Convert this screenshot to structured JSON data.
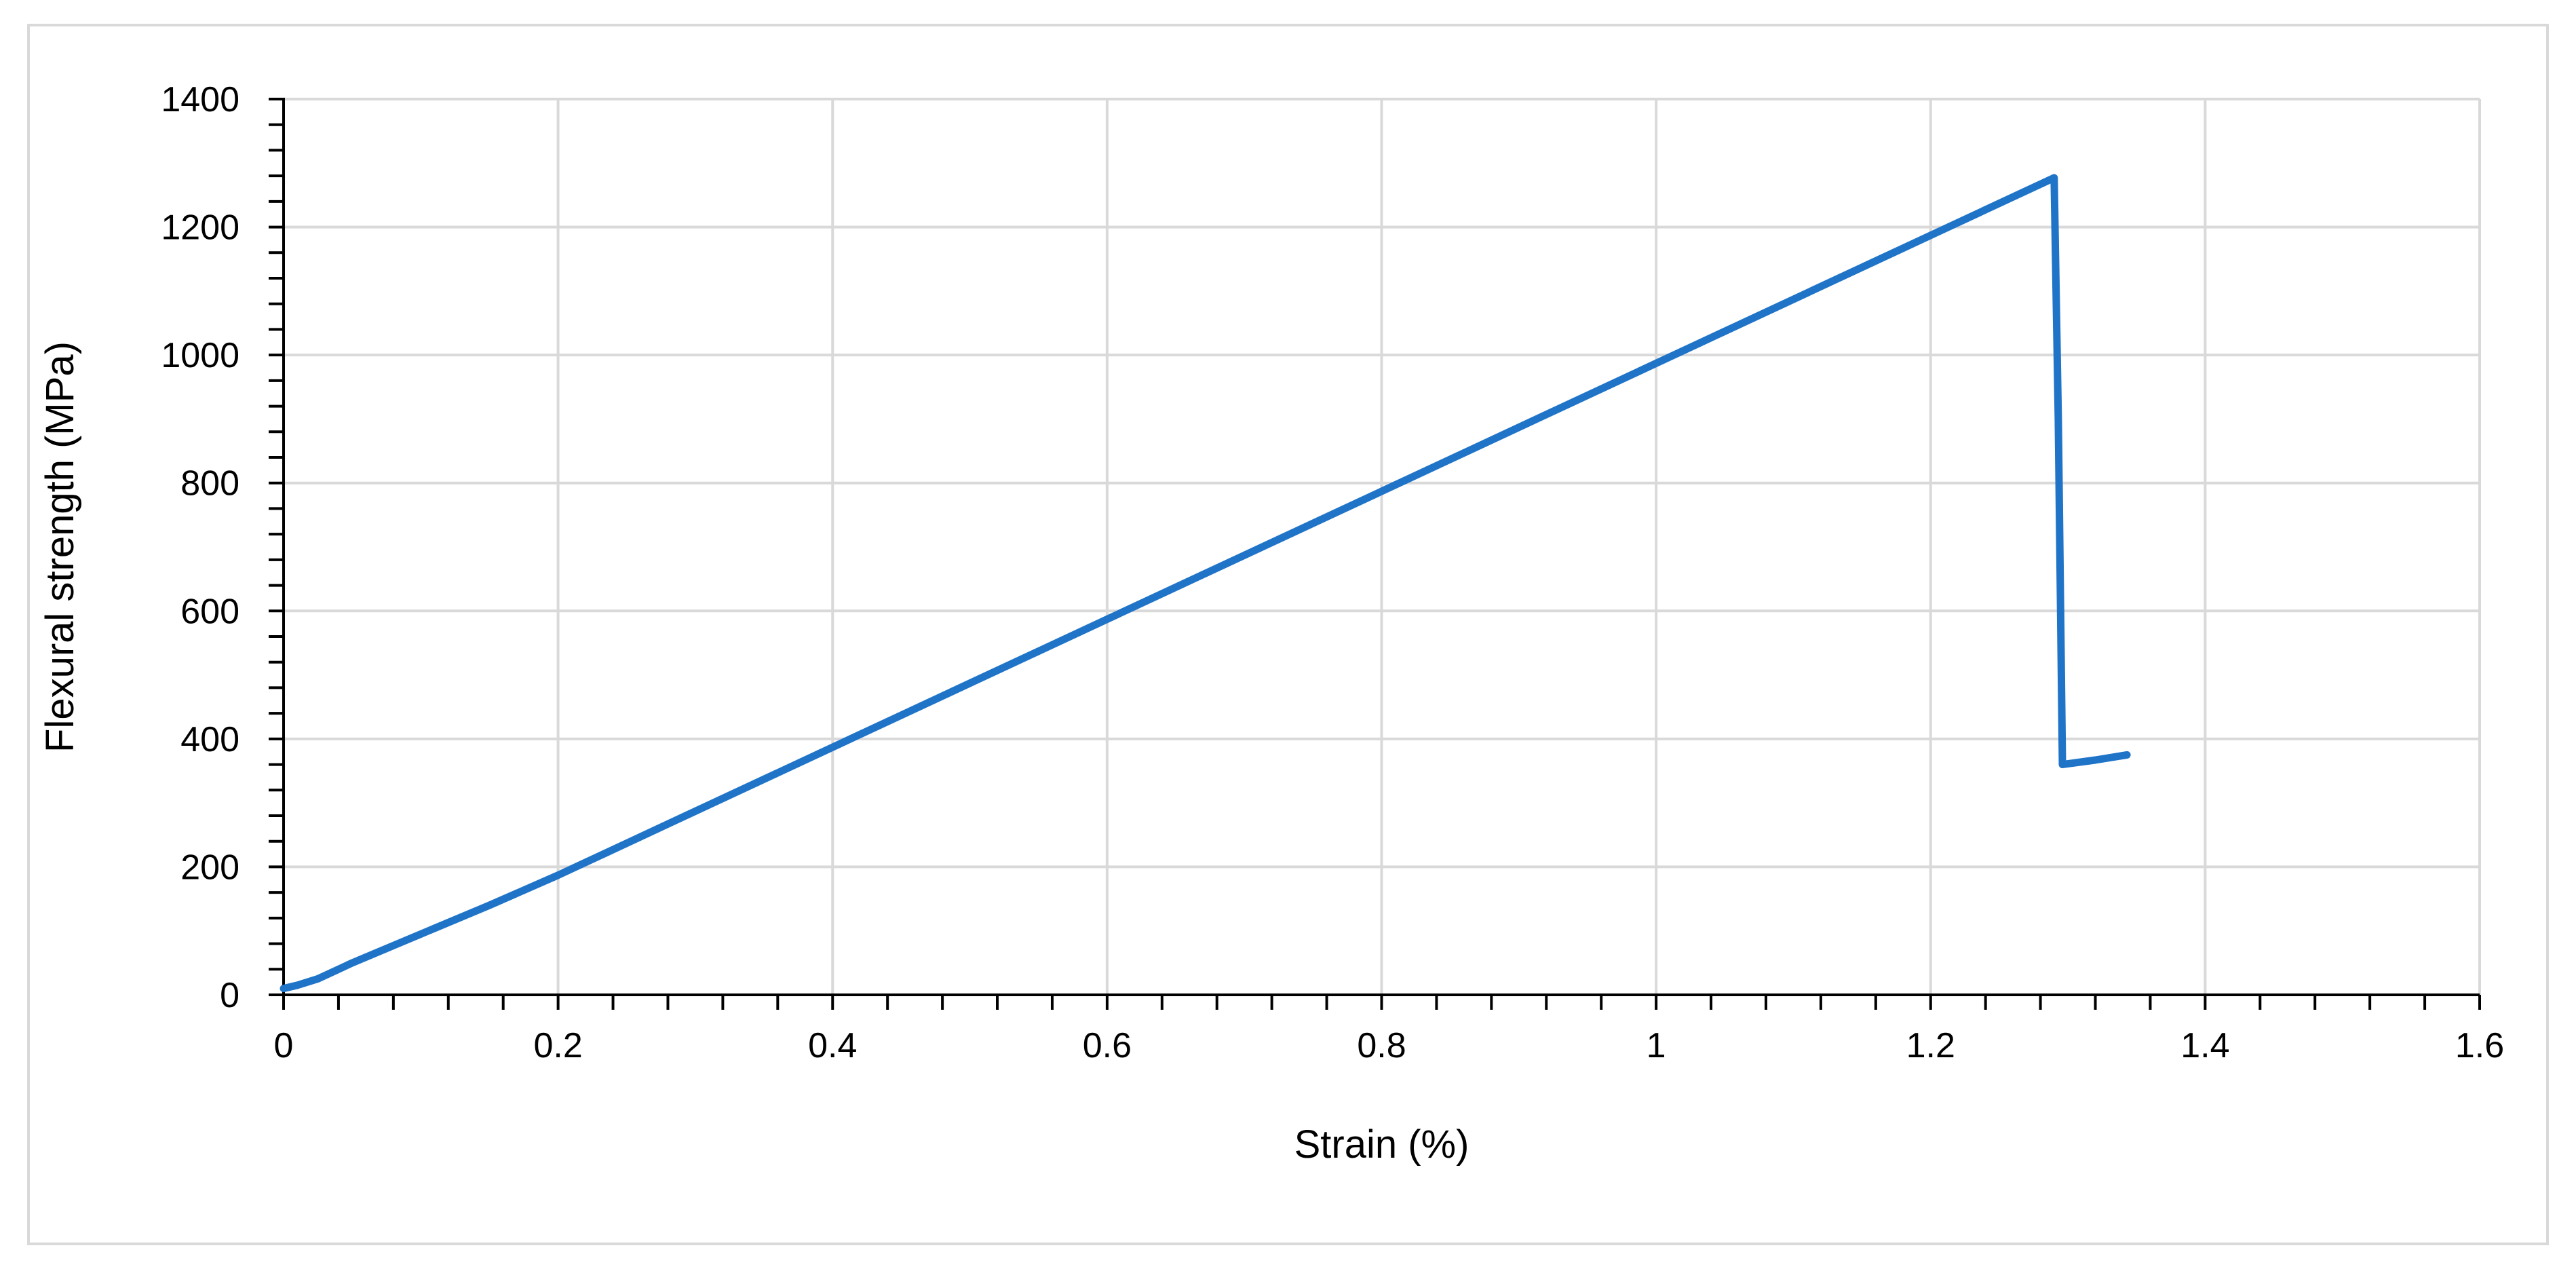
{
  "chart_data": {
    "type": "line",
    "title": "",
    "xlabel": "Strain (%)",
    "ylabel": "Flexural strength (MPa)",
    "xlim": [
      0,
      1.6
    ],
    "ylim": [
      0,
      1400
    ],
    "x_ticks": [
      "0",
      "0.2",
      "0.4",
      "0.6",
      "0.8",
      "1",
      "1.2",
      "1.4",
      "1.6"
    ],
    "y_ticks": [
      "0",
      "200",
      "400",
      "600",
      "800",
      "1000",
      "1200",
      "1400"
    ],
    "grid": true,
    "legend": "none",
    "series": [
      {
        "color": "#1f74c8",
        "x": [
          0,
          0.01,
          0.025,
          0.05,
          0.1,
          0.15,
          0.2,
          0.4,
          0.6,
          0.8,
          1.0,
          1.2,
          1.29,
          1.293,
          1.296,
          1.32,
          1.343
        ],
        "y": [
          10,
          15,
          25,
          50,
          95,
          140,
          187,
          387,
          587,
          787,
          987,
          1187,
          1277,
          900,
          360,
          367,
          375
        ]
      }
    ]
  }
}
